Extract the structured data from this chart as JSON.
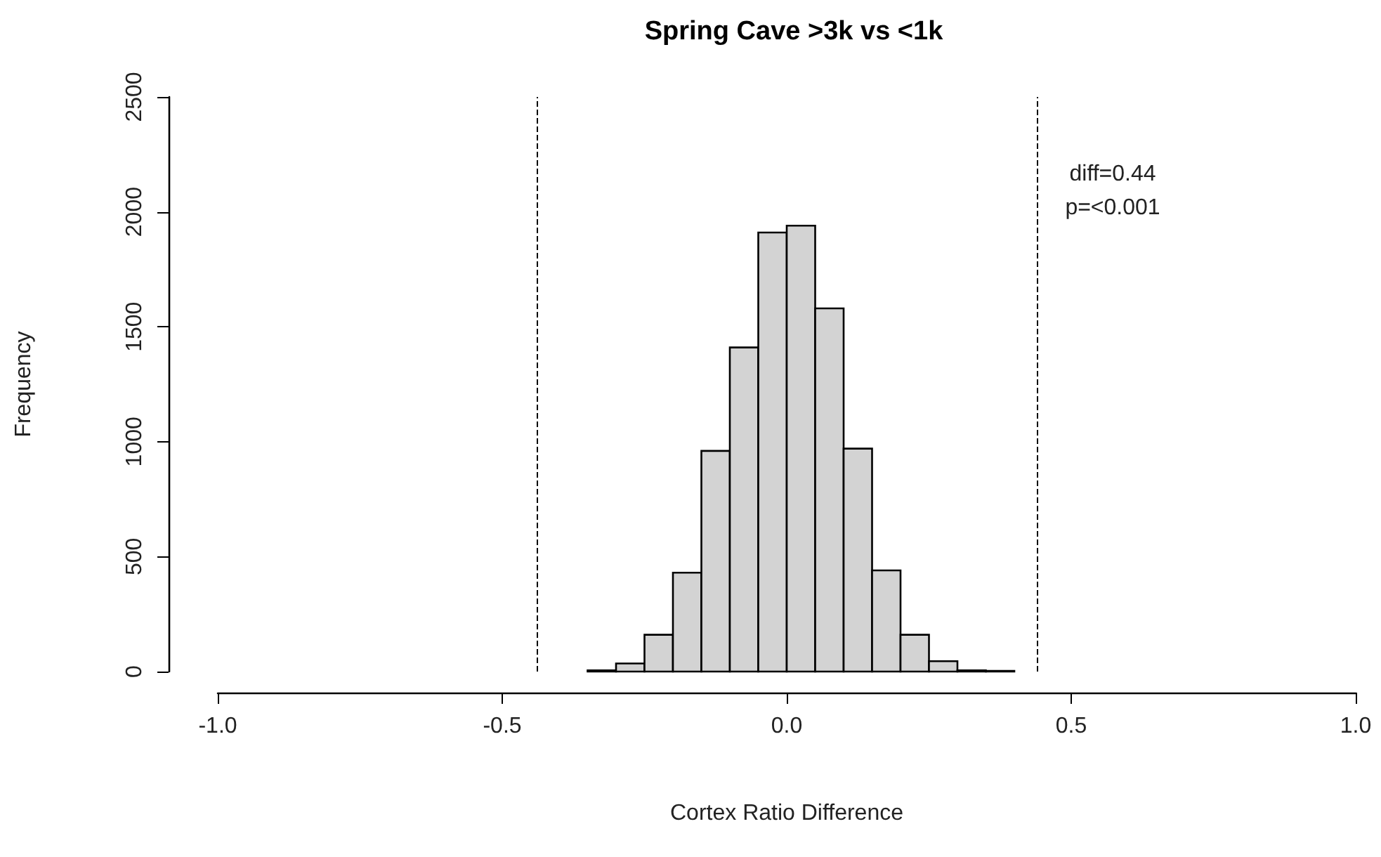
{
  "chart_data": {
    "type": "histogram",
    "title": "Spring Cave >3k vs <1k",
    "xlabel": "Cortex Ratio Difference",
    "ylabel": "Frequency",
    "bins": [
      -0.35,
      -0.3,
      -0.25,
      -0.2,
      -0.15,
      -0.1,
      -0.05,
      0,
      0.05,
      0.1,
      0.15,
      0.2,
      0.25,
      0.3,
      0.35,
      0.4
    ],
    "values": [
      5,
      35,
      160,
      430,
      960,
      1410,
      1910,
      1940,
      1580,
      970,
      440,
      160,
      45,
      5,
      3
    ],
    "color": "#d3d3d3",
    "xlim": [
      -1,
      1
    ],
    "xticks": [
      {
        "value": -1,
        "label": "-1.0"
      },
      {
        "value": -0.5,
        "label": "-0.5"
      },
      {
        "value": 0,
        "label": "0.0"
      },
      {
        "value": 0.5,
        "label": "0.5"
      },
      {
        "value": 1,
        "label": "1.0"
      }
    ],
    "ylim": [
      0,
      2500
    ],
    "yticks": [
      0,
      500,
      1000,
      1500,
      2000,
      2500
    ],
    "ref_lines": [
      {
        "axis": "x",
        "value": -0.44,
        "line_style": "dashed"
      },
      {
        "axis": "x",
        "value": 0.44,
        "line_style": "dashed"
      }
    ],
    "annotations": [
      "diff=0.44",
      "p=<0.001"
    ]
  }
}
